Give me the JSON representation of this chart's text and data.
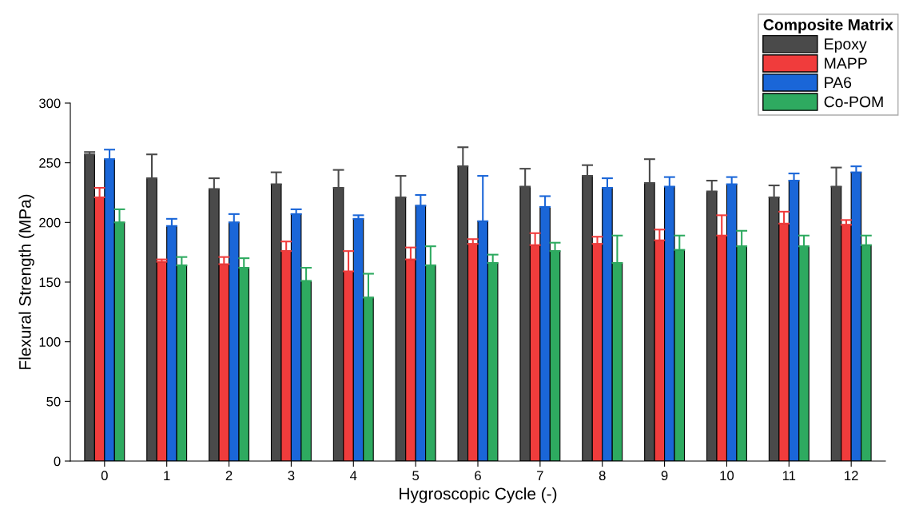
{
  "chart_data": {
    "type": "bar",
    "xlabel": "Hygroscopic Cycle (-)",
    "ylabel": "Flexural Strength (MPa)",
    "legend_title": "Composite Matrix",
    "legend": "top right",
    "grid": false,
    "categories": [
      "0",
      "1",
      "2",
      "3",
      "4",
      "5",
      "6",
      "7",
      "8",
      "9",
      "10",
      "11",
      "12"
    ],
    "ylim": [
      0,
      300
    ],
    "yticks": [
      0,
      50,
      100,
      150,
      200,
      250,
      300
    ],
    "series": [
      {
        "name": "Epoxy",
        "color": "#4a4a4a",
        "values": [
          257,
          237,
          228,
          232,
          229,
          221,
          247,
          230,
          239,
          233,
          226,
          221,
          230
        ],
        "errors": [
          [
            257,
            259
          ],
          [
            237,
            257
          ],
          [
            228,
            237
          ],
          [
            232,
            242
          ],
          [
            229,
            244
          ],
          [
            221,
            239
          ],
          [
            247,
            263
          ],
          [
            230,
            245
          ],
          [
            239,
            248
          ],
          [
            233,
            253
          ],
          [
            226,
            235
          ],
          [
            221,
            231
          ],
          [
            230,
            246
          ]
        ]
      },
      {
        "name": "MAPP",
        "color": "#f03c3c",
        "values": [
          221,
          167,
          165,
          176,
          159,
          169,
          182,
          181,
          182,
          185,
          189,
          199,
          198
        ],
        "errors": [
          [
            221,
            229
          ],
          [
            167,
            169
          ],
          [
            165,
            171
          ],
          [
            176,
            184
          ],
          [
            159,
            176
          ],
          [
            169,
            179
          ],
          [
            182,
            186
          ],
          [
            181,
            191
          ],
          [
            182,
            188
          ],
          [
            185,
            194
          ],
          [
            189,
            206
          ],
          [
            199,
            209
          ],
          [
            198,
            202
          ]
        ]
      },
      {
        "name": "PA6",
        "color": "#1a66d8",
        "values": [
          253,
          197,
          200,
          207,
          203,
          214,
          201,
          213,
          229,
          230,
          232,
          235,
          242
        ],
        "errors": [
          [
            253,
            261
          ],
          [
            197,
            203
          ],
          [
            200,
            207
          ],
          [
            207,
            211
          ],
          [
            203,
            206
          ],
          [
            214,
            223
          ],
          [
            201,
            239
          ],
          [
            213,
            222
          ],
          [
            229,
            237
          ],
          [
            230,
            238
          ],
          [
            232,
            238
          ],
          [
            235,
            241
          ],
          [
            242,
            247
          ]
        ]
      },
      {
        "name": "Co-POM",
        "color": "#2eaa60",
        "values": [
          200,
          164,
          162,
          151,
          137,
          164,
          166,
          176,
          166,
          177,
          180,
          180,
          181
        ],
        "errors": [
          [
            200,
            211
          ],
          [
            164,
            171
          ],
          [
            162,
            170
          ],
          [
            151,
            162
          ],
          [
            137,
            157
          ],
          [
            164,
            180
          ],
          [
            166,
            173
          ],
          [
            176,
            183
          ],
          [
            166,
            189
          ],
          [
            177,
            189
          ],
          [
            180,
            193
          ],
          [
            180,
            189
          ],
          [
            181,
            189
          ]
        ]
      }
    ]
  }
}
